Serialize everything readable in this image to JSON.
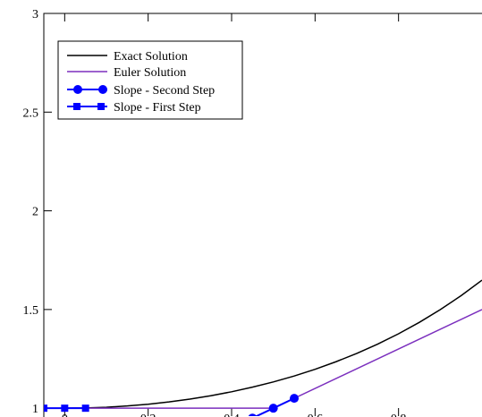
{
  "chart_data": {
    "type": "line",
    "title": "",
    "xlabel": "",
    "ylabel": "",
    "xlim": [
      -0.05,
      1.0
    ],
    "ylim": [
      0.96,
      3.0
    ],
    "grid": false,
    "legend_position": "top-left",
    "x_ticks": [
      {
        "value": 0,
        "label": "0"
      },
      {
        "value": 0.2,
        "label": "0.2"
      },
      {
        "value": 0.4,
        "label": "0.4"
      },
      {
        "value": 0.6,
        "label": "0.6"
      },
      {
        "value": 0.8,
        "label": "0.8"
      }
    ],
    "y_ticks": [
      {
        "value": 1,
        "label": "1"
      },
      {
        "value": 1.5,
        "label": "1.5"
      },
      {
        "value": 2,
        "label": "2"
      },
      {
        "value": 2.5,
        "label": "2.5"
      },
      {
        "value": 3,
        "label": "3"
      }
    ],
    "series": [
      {
        "name": "Exact Solution",
        "color": "#000000",
        "marker": "none",
        "x": [
          0,
          0.05,
          0.1,
          0.15,
          0.2,
          0.25,
          0.3,
          0.35,
          0.4,
          0.45,
          0.5,
          0.55,
          0.6,
          0.65,
          0.7,
          0.75,
          0.8,
          0.85,
          0.9,
          0.95,
          1.0
        ],
        "y": [
          1.0,
          1.0013,
          1.005,
          1.0113,
          1.0202,
          1.0317,
          1.046,
          1.0632,
          1.0833,
          1.1066,
          1.1331,
          1.1632,
          1.1972,
          1.2354,
          1.2776,
          1.3248,
          1.3771,
          1.4351,
          1.4993,
          1.5703,
          1.6487
        ]
      },
      {
        "name": "Euler Solution",
        "color": "#7b2fbe",
        "marker": "none",
        "x": [
          0,
          0.5,
          1.0
        ],
        "y": [
          1.0,
          1.0,
          1.5
        ]
      },
      {
        "name": "Slope - Second Step",
        "color": "#0000ff",
        "marker": "circle",
        "x": [
          0.45,
          0.5,
          0.55
        ],
        "y": [
          0.95,
          1.0,
          1.05
        ]
      },
      {
        "name": "Slope - First Step",
        "color": "#0000ff",
        "marker": "square",
        "x": [
          -0.05,
          0,
          0.05
        ],
        "y": [
          1.0,
          1.0,
          1.0
        ]
      }
    ]
  }
}
